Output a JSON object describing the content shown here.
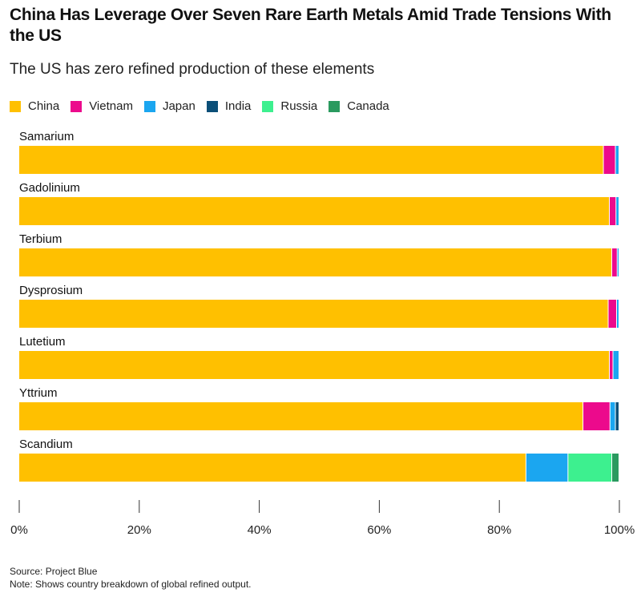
{
  "chart_data": {
    "type": "bar",
    "orientation": "horizontal-stacked",
    "title": "China Has Leverage Over Seven Rare Earth Metals Amid Trade Tensions With the US",
    "subtitle": "The US has zero refined production of these elements",
    "categories": [
      "Samarium",
      "Gadolinium",
      "Terbium",
      "Dysprosium",
      "Lutetium",
      "Yttrium",
      "Scandium"
    ],
    "series": [
      {
        "name": "China",
        "color": "#FFC000",
        "values": [
          97.4,
          98.4,
          98.8,
          98.2,
          98.4,
          94.0,
          84.5
        ]
      },
      {
        "name": "Vietnam",
        "color": "#EC0A8C",
        "values": [
          2.0,
          1.1,
          0.9,
          1.4,
          0.6,
          4.5,
          0
        ]
      },
      {
        "name": "Japan",
        "color": "#1BA6F0",
        "values": [
          0.6,
          0.5,
          0.3,
          0.4,
          1.0,
          0.9,
          7.0
        ]
      },
      {
        "name": "India",
        "color": "#0B4F78",
        "values": [
          0,
          0,
          0,
          0,
          0,
          0.6,
          0
        ]
      },
      {
        "name": "Russia",
        "color": "#3DF08F",
        "values": [
          0,
          0,
          0,
          0,
          0,
          0,
          7.3
        ]
      },
      {
        "name": "Canada",
        "color": "#2A9A5F",
        "values": [
          0,
          0,
          0,
          0,
          0,
          0,
          1.2
        ]
      }
    ],
    "xlim": [
      0,
      100
    ],
    "xticks": [
      "0%",
      "20%",
      "40%",
      "60%",
      "80%",
      "100%"
    ],
    "legend": "top-left",
    "source": "Source: Project Blue",
    "note": "Note: Shows country breakdown of global refined output."
  }
}
